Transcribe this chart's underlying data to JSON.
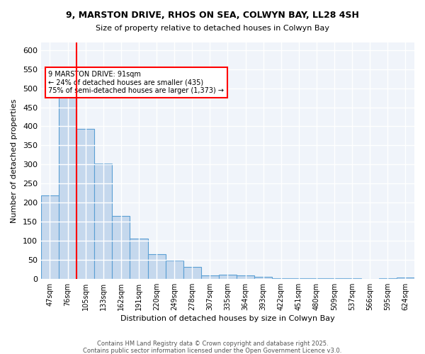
{
  "title_line1": "9, MARSTON DRIVE, RHOS ON SEA, COLWYN BAY, LL28 4SH",
  "title_line2": "Size of property relative to detached houses in Colwyn Bay",
  "xlabel": "Distribution of detached houses by size in Colwyn Bay",
  "ylabel": "Number of detached properties",
  "categories": [
    "47sqm",
    "76sqm",
    "105sqm",
    "133sqm",
    "162sqm",
    "191sqm",
    "220sqm",
    "249sqm",
    "278sqm",
    "307sqm",
    "335sqm",
    "364sqm",
    "393sqm",
    "422sqm",
    "451sqm",
    "480sqm",
    "509sqm",
    "537sqm",
    "566sqm",
    "595sqm",
    "624sqm"
  ],
  "values": [
    218,
    478,
    393,
    302,
    165,
    106,
    65,
    48,
    31,
    9,
    10,
    9,
    5,
    2,
    1,
    2,
    1,
    1,
    0,
    1,
    4
  ],
  "bar_color": "#c5d8ed",
  "bar_edge_color": "#5a9fd4",
  "red_line_index": 1.5,
  "annotation_text": "9 MARSTON DRIVE: 91sqm\n← 24% of detached houses are smaller (435)\n75% of semi-detached houses are larger (1,373) →",
  "annotation_box_color": "white",
  "annotation_box_edge_color": "red",
  "ylim": [
    0,
    620
  ],
  "yticks": [
    0,
    50,
    100,
    150,
    200,
    250,
    300,
    350,
    400,
    450,
    500,
    550,
    600
  ],
  "background_color": "#f0f4fa",
  "grid_color": "white",
  "footer_line1": "Contains HM Land Registry data © Crown copyright and database right 2025.",
  "footer_line2": "Contains public sector information licensed under the Open Government Licence v3.0."
}
